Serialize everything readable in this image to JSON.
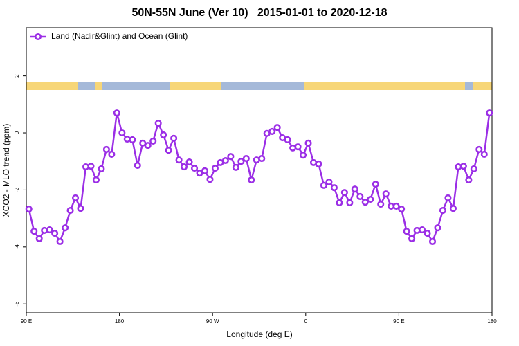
{
  "chart_data": {
    "type": "line",
    "title": "50N-55N June (Ver 10)   2015-01-01 to 2020-12-18",
    "xlabel": "Longitude (deg E)",
    "ylabel": "XCO2 - MLO trend (ppm)",
    "x": [
      92.5,
      97.5,
      102.5,
      107.5,
      112.5,
      117.5,
      122.5,
      127.5,
      132.5,
      137.5,
      142.5,
      147.5,
      152.5,
      157.5,
      162.5,
      167.5,
      172.5,
      177.5,
      182.5,
      187.5,
      192.5,
      197.5,
      202.5,
      207.5,
      212.5,
      217.5,
      222.5,
      227.5,
      232.5,
      237.5,
      242.5,
      247.5,
      252.5,
      257.5,
      262.5,
      267.5,
      272.5,
      277.5,
      282.5,
      287.5,
      292.5,
      297.5,
      302.5,
      307.5,
      312.5,
      317.5,
      322.5,
      327.5,
      332.5,
      337.5,
      342.5,
      347.5,
      352.5,
      357.5,
      362.5,
      367.5,
      372.5,
      377.5,
      382.5,
      387.5,
      392.5,
      397.5,
      402.5,
      407.5,
      412.5,
      417.5,
      422.5,
      427.5,
      432.5,
      437.5,
      442.5,
      447.5,
      452.5,
      457.5,
      462.5,
      467.5,
      472.5,
      477.5,
      482.5,
      487.5,
      492.5,
      497.5,
      502.5,
      507.5,
      512.5,
      517.5,
      522.5,
      527.5,
      532.5,
      537.5
    ],
    "series": [
      {
        "name": "Land (Nadir&Glint) and Ocean (Glint)",
        "color": "#9b2ee6",
        "values": [
          -2.67,
          -3.45,
          -3.71,
          -3.42,
          -3.4,
          -3.52,
          -3.81,
          -3.33,
          -2.72,
          -2.28,
          -2.65,
          -1.19,
          -1.17,
          -1.65,
          -1.26,
          -0.58,
          -0.75,
          0.7,
          0.0,
          -0.22,
          -0.24,
          -1.14,
          -0.36,
          -0.44,
          -0.29,
          0.34,
          -0.07,
          -0.61,
          -0.19,
          -0.95,
          -1.19,
          -1.02,
          -1.24,
          -1.41,
          -1.33,
          -1.63,
          -1.24,
          -1.04,
          -0.97,
          -0.83,
          -1.21,
          -1.0,
          -0.9,
          -1.65,
          -0.95,
          -0.9,
          -0.02,
          0.05,
          0.19,
          -0.17,
          -0.24,
          -0.53,
          -0.49,
          -0.78,
          -0.36,
          -1.04,
          -1.09,
          -1.84,
          -1.72,
          -1.92,
          -2.45,
          -2.09,
          -2.45,
          -1.97,
          -2.23,
          -2.43,
          -2.33,
          -1.8,
          -2.5,
          -2.14,
          -2.57,
          -2.57,
          -2.67,
          -3.45,
          -3.71,
          -3.42,
          -3.4,
          -3.52,
          -3.81,
          -3.33,
          -2.72,
          -2.28,
          -2.65,
          -1.19,
          -1.17,
          -1.65,
          -1.26,
          -0.58,
          -0.75,
          0.7
        ]
      }
    ],
    "xlim": [
      90,
      540
    ],
    "xticks": [
      {
        "value": 90,
        "label": "90 E"
      },
      180,
      {
        "value": 270,
        "label": "90 W"
      },
      {
        "value": 360,
        "label": "0"
      },
      {
        "value": 450,
        "label": "90 E"
      },
      {
        "value": 540,
        "label": "180"
      }
    ],
    "ylim": [
      -6.31,
      3.69
    ],
    "yticks": [
      2,
      0,
      -2,
      -4,
      -6
    ],
    "legend": "upper left"
  }
}
